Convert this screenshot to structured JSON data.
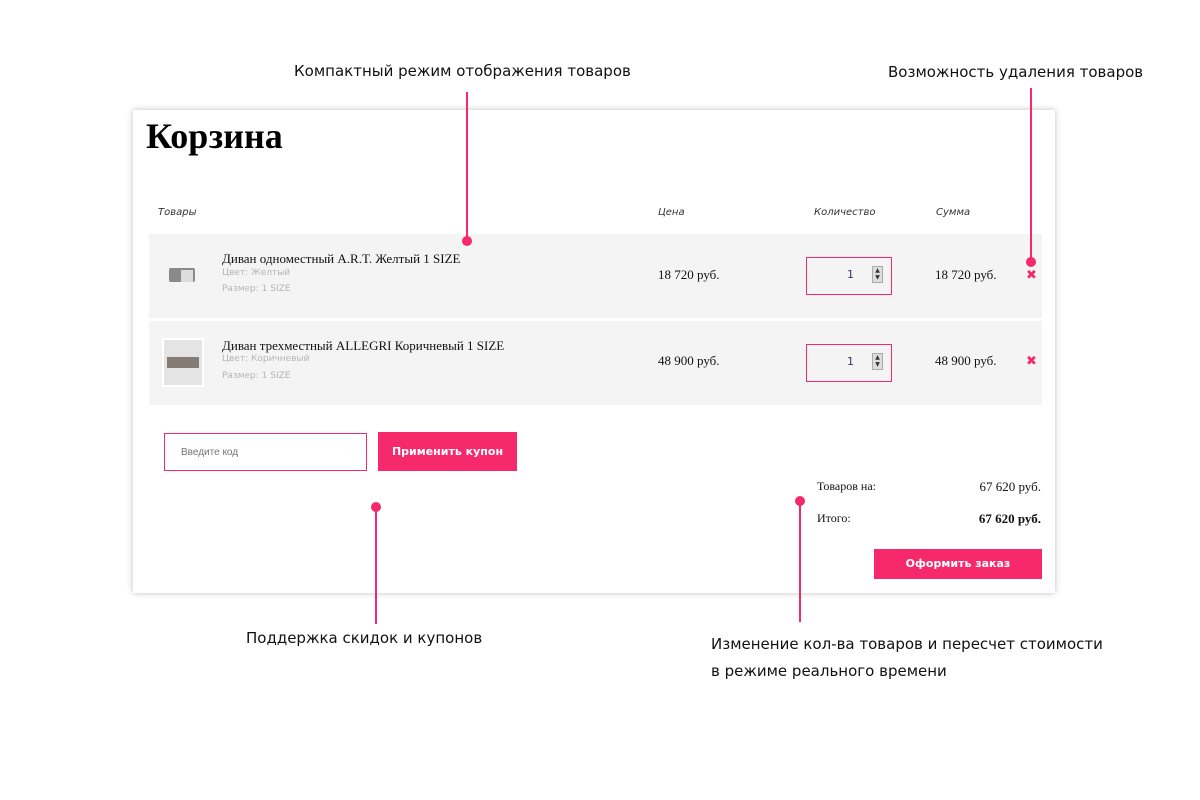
{
  "annotations": {
    "compact": "Компактный режим отображения товаров",
    "delete": "Возможность удаления товаров",
    "coupons": "Поддержка скидок и купонов",
    "recalc_1": "Изменение кол-ва товаров и пересчет стоимости",
    "recalc_2": "в режиме реального времени"
  },
  "accent": "#f5296b",
  "cart": {
    "title": "Корзина",
    "headers": {
      "items": "Товары",
      "price": "Цена",
      "qty": "Количество",
      "sum": "Сумма"
    },
    "items": [
      {
        "name": "Диван одноместный A.R.T. Желтый 1 SIZE",
        "color": "Цвет: Желтый",
        "size": "Размер: 1 SIZE",
        "price": "18 720 руб.",
        "qty": "1",
        "sum": "18 720 руб."
      },
      {
        "name": "Диван трехместный ALLEGRI Коричневый 1 SIZE",
        "color": "Цвет: Коричневый",
        "size": "Размер: 1 SIZE",
        "price": "48 900 руб.",
        "qty": "1",
        "sum": "48 900 руб."
      }
    ],
    "coupon": {
      "placeholder": "Введите код",
      "apply": "Применить купон"
    },
    "totals": {
      "goods_label": "Товаров на:",
      "goods_value": "67 620 руб.",
      "total_label": "Итого:",
      "total_value": "67 620 руб."
    },
    "checkout": "Оформить заказ"
  }
}
